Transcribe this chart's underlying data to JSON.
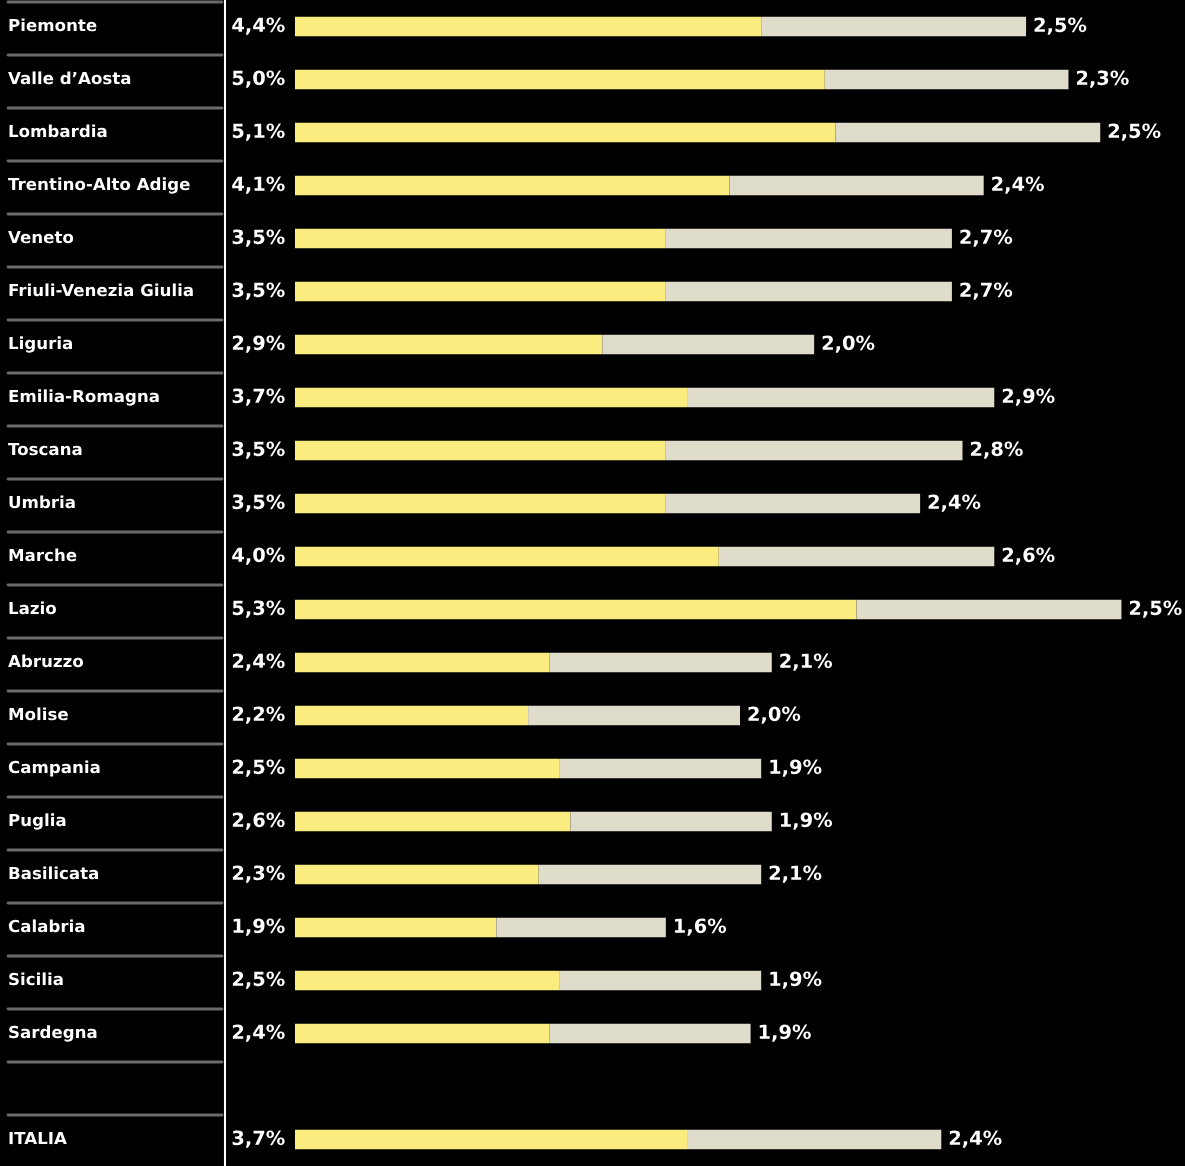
{
  "chart_data": {
    "type": "bar",
    "orientation": "horizontal",
    "stacked": true,
    "tick_labels": "y",
    "xlim": [
      0,
      8.4
    ],
    "categories": [
      "Piemonte",
      "Valle d’Aosta",
      "Lombardia",
      "Trentino-Alto Adige",
      "Veneto",
      "Friuli-Venezia Giulia",
      "Liguria",
      "Emilia-Romagna",
      "Toscana",
      "Umbria",
      "Marche",
      "Lazio",
      "Abruzzo",
      "Molise",
      "Campania",
      "Puglia",
      "Basilicata",
      "Calabria",
      "Sicilia",
      "Sardegna",
      null,
      "ITALIA"
    ],
    "series": [
      {
        "color": "#fbec7f",
        "values": [
          4.4,
          5.0,
          5.1,
          4.1,
          3.5,
          3.5,
          2.9,
          3.7,
          3.5,
          3.5,
          4.0,
          5.3,
          2.4,
          2.2,
          2.5,
          2.6,
          2.3,
          1.9,
          2.5,
          2.4,
          null,
          3.7
        ],
        "value_labels": [
          "4,4%",
          "5,0%",
          "5,1%",
          "4,1%",
          "3,5%",
          "3,5%",
          "2,9%",
          "3,7%",
          "3,5%",
          "3,5%",
          "4,0%",
          "5,3%",
          "2,4%",
          "2,2%",
          "2,5%",
          "2,6%",
          "2,3%",
          "1,9%",
          "2,5%",
          "2,4%",
          null,
          "3,7%"
        ]
      },
      {
        "color": "#e0dccb",
        "values": [
          2.5,
          2.3,
          2.5,
          2.4,
          2.7,
          2.7,
          2.0,
          2.9,
          2.8,
          2.4,
          2.6,
          2.5,
          2.1,
          2.0,
          1.9,
          1.9,
          2.1,
          1.6,
          1.9,
          1.9,
          null,
          2.4
        ],
        "value_labels": [
          "2,5%",
          "2,3%",
          "2,5%",
          "2,4%",
          "2,7%",
          "2,7%",
          "2,0%",
          "2,9%",
          "2,8%",
          "2,4%",
          "2,6%",
          "2,5%",
          "2,1%",
          "2,0%",
          "1,9%",
          "1,9%",
          "2,1%",
          "1,6%",
          "1,9%",
          "1,9%",
          null,
          "2,4%"
        ]
      }
    ]
  }
}
